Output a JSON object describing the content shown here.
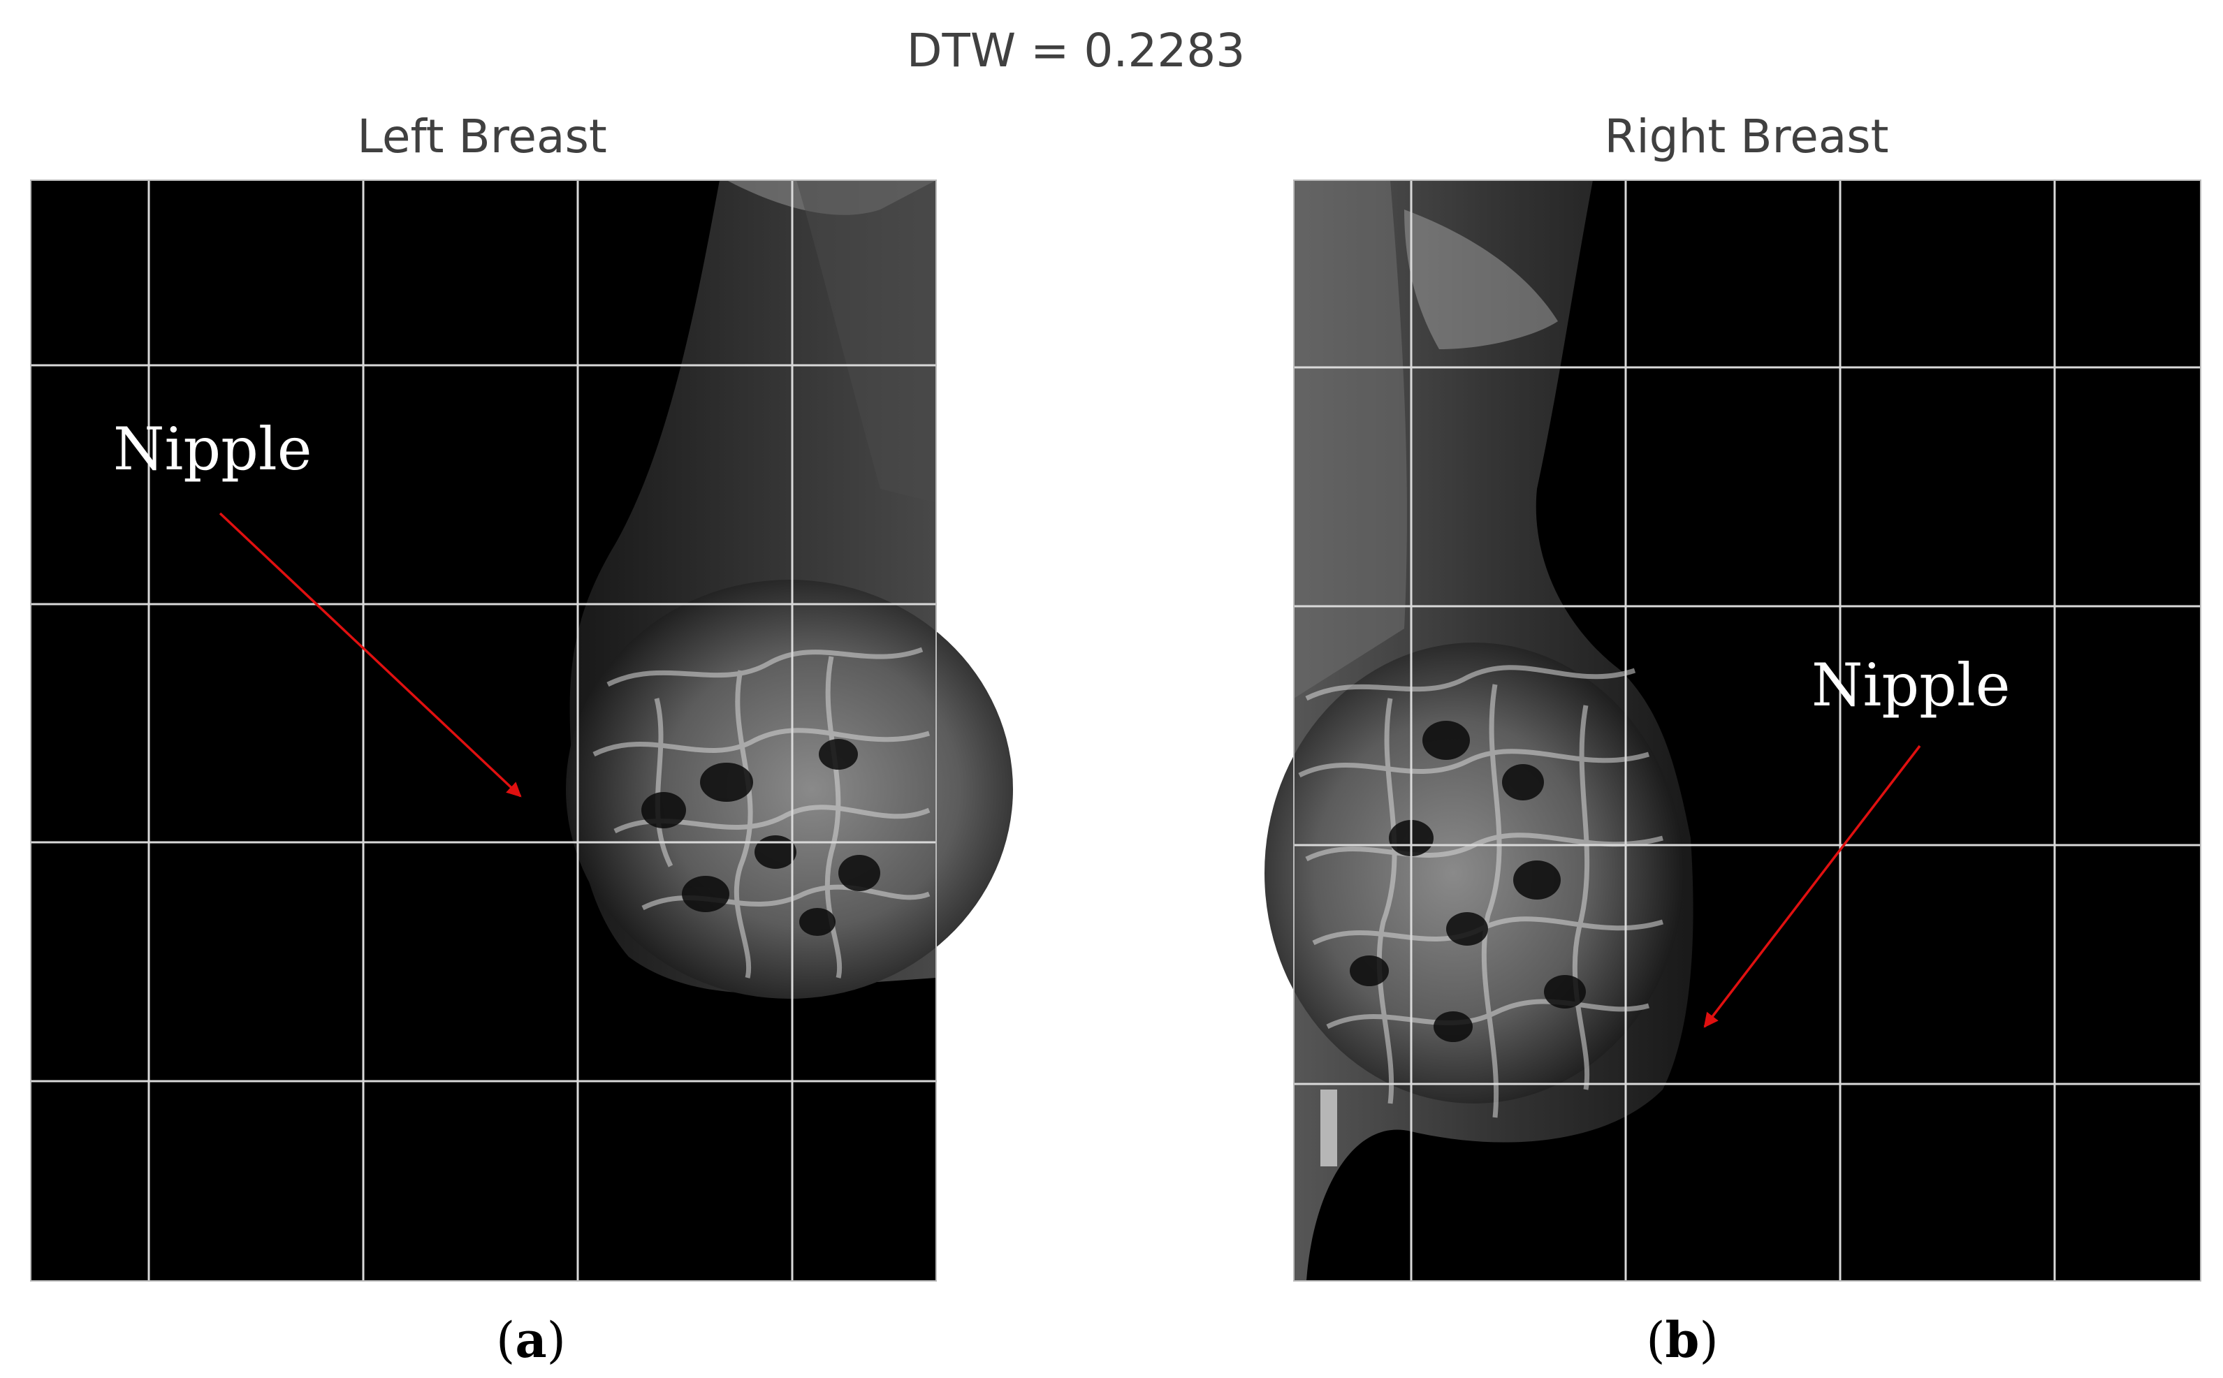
{
  "figure": {
    "main_title": "DTW = 0.2283"
  },
  "panels": [
    {
      "id": "a",
      "title": "Left Breast",
      "annotation": "Nipple",
      "caption_letter": "a"
    },
    {
      "id": "b",
      "title": "Right Breast",
      "annotation": "Nipple",
      "caption_letter": "b"
    }
  ],
  "colors": {
    "background": "#ffffff",
    "image_background": "#000000",
    "grid": "#d9d9d9",
    "arrow": "#e01010",
    "title_text": "#404040",
    "annotation_text": "#ffffff",
    "caption_text": "#000000"
  }
}
